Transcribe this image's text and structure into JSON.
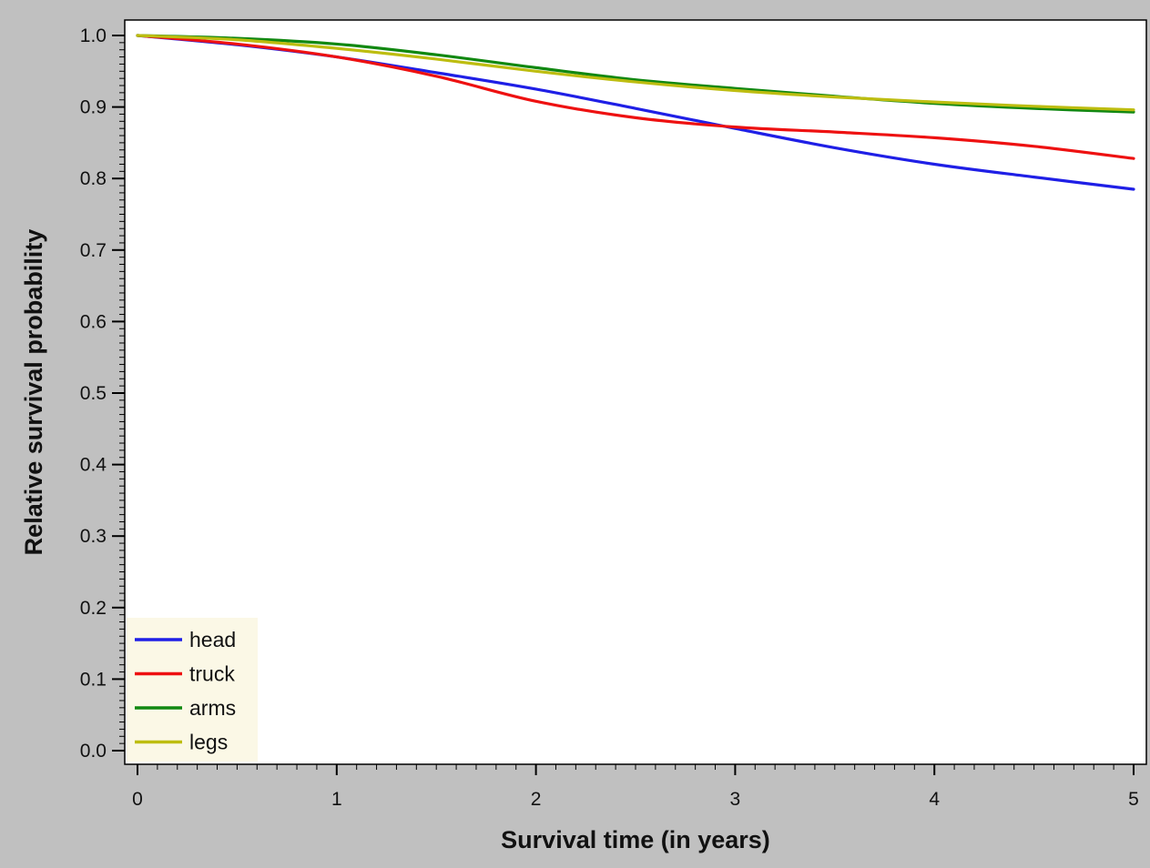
{
  "chart_data": {
    "type": "line",
    "title": "",
    "xlabel": "Survival time (in years)",
    "ylabel": "Relative survival probability",
    "xlim": [
      0,
      5
    ],
    "ylim": [
      0,
      1
    ],
    "x_ticks": [
      "0",
      "1",
      "2",
      "3",
      "4",
      "5"
    ],
    "y_ticks": [
      "0.0",
      "0.1",
      "0.2",
      "0.3",
      "0.4",
      "0.5",
      "0.6",
      "0.7",
      "0.8",
      "0.9",
      "1.0"
    ],
    "grid": false,
    "legend_position": "bottom-left",
    "background": "#c0c0c0",
    "x": [
      0,
      0.5,
      1,
      1.5,
      2,
      2.5,
      3,
      3.5,
      4,
      4.5,
      5
    ],
    "series": [
      {
        "name": "head",
        "color": "#1f1fe6",
        "values": [
          1.0,
          0.987,
          0.97,
          0.948,
          0.925,
          0.898,
          0.87,
          0.843,
          0.82,
          0.802,
          0.785
        ]
      },
      {
        "name": "truck",
        "color": "#ee1111",
        "values": [
          1.0,
          0.988,
          0.97,
          0.943,
          0.908,
          0.885,
          0.872,
          0.865,
          0.857,
          0.845,
          0.828
        ]
      },
      {
        "name": "arms",
        "color": "#118811",
        "values": [
          1.0,
          0.996,
          0.988,
          0.973,
          0.955,
          0.938,
          0.926,
          0.915,
          0.905,
          0.898,
          0.893
        ]
      },
      {
        "name": "legs",
        "color": "#bdbd10",
        "values": [
          1.0,
          0.994,
          0.982,
          0.967,
          0.95,
          0.935,
          0.923,
          0.914,
          0.907,
          0.901,
          0.896
        ]
      }
    ]
  }
}
